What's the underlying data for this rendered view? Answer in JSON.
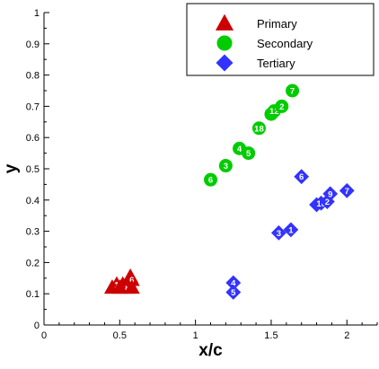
{
  "chart_data": {
    "type": "scatter",
    "title": "",
    "xlabel": "x/c",
    "ylabel": "y",
    "xlim": [
      0,
      2.2
    ],
    "ylim": [
      0,
      1
    ],
    "x_ticks": [
      0,
      0.5,
      1,
      1.5,
      2
    ],
    "x_tick_labels": [
      "0",
      "0.5",
      "1",
      "1.5",
      "2"
    ],
    "y_ticks": [
      0,
      0.1,
      0.2,
      0.3,
      0.4,
      0.5,
      0.6,
      0.7,
      0.8,
      0.9,
      1
    ],
    "y_tick_labels": [
      "0",
      "0.1",
      "0.2",
      "0.3",
      "0.4",
      "0.5",
      "0.6",
      "0.7",
      "0.8",
      "0.9",
      "1"
    ],
    "grid": false,
    "legend_position": "top-right",
    "series": [
      {
        "name": "Primary",
        "marker": "triangle",
        "color": "#cc0000",
        "points": [
          {
            "x": 0.45,
            "y": 0.12,
            "label": ""
          },
          {
            "x": 0.48,
            "y": 0.13,
            "label": "1"
          },
          {
            "x": 0.5,
            "y": 0.12,
            "label": "8"
          },
          {
            "x": 0.52,
            "y": 0.13,
            "label": ""
          },
          {
            "x": 0.55,
            "y": 0.12,
            "label": "8"
          },
          {
            "x": 0.57,
            "y": 0.155,
            "label": ""
          },
          {
            "x": 0.58,
            "y": 0.145,
            "label": "6"
          },
          {
            "x": 0.58,
            "y": 0.12,
            "label": ""
          }
        ]
      },
      {
        "name": "Secondary",
        "marker": "circle",
        "color": "#00cc00",
        "points": [
          {
            "x": 1.1,
            "y": 0.465,
            "label": "6"
          },
          {
            "x": 1.2,
            "y": 0.51,
            "label": "3"
          },
          {
            "x": 1.29,
            "y": 0.565,
            "label": "4"
          },
          {
            "x": 1.35,
            "y": 0.55,
            "label": "5"
          },
          {
            "x": 1.42,
            "y": 0.63,
            "label": "18"
          },
          {
            "x": 1.5,
            "y": 0.675,
            "label": ""
          },
          {
            "x": 1.52,
            "y": 0.685,
            "label": "12"
          },
          {
            "x": 1.57,
            "y": 0.7,
            "label": "2"
          },
          {
            "x": 1.64,
            "y": 0.75,
            "label": "7"
          }
        ]
      },
      {
        "name": "Tertiary",
        "marker": "diamond",
        "color": "#3333ff",
        "points": [
          {
            "x": 1.25,
            "y": 0.135,
            "label": "4"
          },
          {
            "x": 1.25,
            "y": 0.105,
            "label": "5"
          },
          {
            "x": 1.55,
            "y": 0.295,
            "label": "3"
          },
          {
            "x": 1.63,
            "y": 0.305,
            "label": "1"
          },
          {
            "x": 1.7,
            "y": 0.475,
            "label": "6"
          },
          {
            "x": 1.8,
            "y": 0.385,
            "label": ""
          },
          {
            "x": 1.83,
            "y": 0.39,
            "label": "10"
          },
          {
            "x": 1.87,
            "y": 0.395,
            "label": "2"
          },
          {
            "x": 1.89,
            "y": 0.42,
            "label": "9"
          },
          {
            "x": 2.0,
            "y": 0.43,
            "label": "7"
          }
        ]
      }
    ]
  }
}
